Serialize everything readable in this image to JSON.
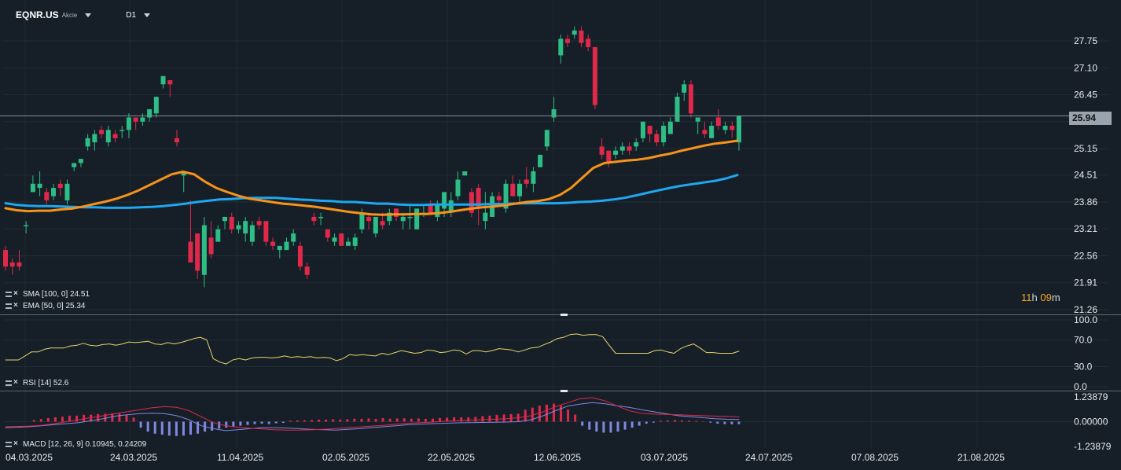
{
  "toolbar": {
    "symbol": "EQNR.US",
    "instrument_type": "Akcie",
    "timeframe": "D1"
  },
  "countdown": {
    "hours": "11",
    "h_unit": "h",
    "minutes": "09",
    "m_unit": "m"
  },
  "last_price": "25.94",
  "indicators": {
    "sma": "SMA [100, 0] 24.51",
    "ema": "EMA [50, 0] 25.34",
    "rsi": "RSI [14] 52.6",
    "macd": "MACD [12, 26, 9] 0.10945, 0.24209"
  },
  "colors": {
    "background": "#161f28",
    "bull": "#2ebd85",
    "bear": "#e0294a",
    "sma": "#1fa7f0",
    "ema": "#f7931a",
    "rsi": "#e5d56b",
    "macd_line": "#8187e0",
    "signal_line": "#e0294a"
  },
  "chart_data": [
    {
      "type": "candlestick",
      "name": "price",
      "y_ticks": [
        "27.75",
        "27.10",
        "26.45",
        "25.80",
        "25.15",
        "24.51",
        "23.86",
        "23.21",
        "22.56",
        "21.91",
        "21.26"
      ],
      "ylim": [
        21.26,
        27.75
      ],
      "x_ticks": [
        "04.03.2025",
        "24.03.2025",
        "11.04.2025",
        "02.05.2025",
        "22.05.2025",
        "12.06.2025",
        "03.07.2025",
        "24.07.2025",
        "07.08.2025",
        "21.08.2025"
      ],
      "ohlc": [
        [
          22.7,
          22.3,
          22.8,
          22.2
        ],
        [
          22.4,
          22.3,
          22.5,
          22.1
        ],
        [
          22.4,
          22.3,
          22.7,
          22.2
        ],
        [
          23.3,
          23.3,
          23.4,
          23.1
        ],
        [
          24.1,
          24.3,
          24.5,
          24.1
        ],
        [
          24.2,
          24.3,
          24.6,
          24.0
        ],
        [
          24.1,
          23.9,
          24.2,
          23.8
        ],
        [
          24.0,
          24.2,
          24.3,
          23.9
        ],
        [
          24.3,
          24.2,
          24.4,
          24.0
        ],
        [
          23.9,
          24.3,
          24.4,
          23.8
        ],
        [
          24.7,
          24.8,
          24.8,
          24.6
        ],
        [
          24.8,
          24.9,
          24.9,
          24.7
        ],
        [
          25.2,
          25.4,
          25.5,
          25.1
        ],
        [
          25.3,
          25.5,
          25.6,
          25.1
        ],
        [
          25.6,
          25.5,
          25.7,
          25.4
        ],
        [
          25.3,
          25.6,
          25.7,
          25.2
        ],
        [
          25.5,
          25.4,
          25.6,
          25.3
        ],
        [
          25.6,
          25.6,
          25.7,
          25.4
        ],
        [
          25.6,
          25.9,
          26.0,
          25.4
        ],
        [
          25.9,
          25.8,
          25.9,
          25.6
        ],
        [
          25.8,
          25.9,
          26.0,
          25.7
        ],
        [
          25.9,
          26.1,
          26.1,
          25.8
        ],
        [
          26.0,
          26.4,
          26.4,
          25.9
        ],
        [
          26.7,
          26.9,
          26.9,
          26.6
        ],
        [
          26.8,
          26.7,
          26.8,
          26.4
        ],
        [
          25.4,
          25.3,
          25.6,
          25.2
        ],
        [
          24.5,
          24.6,
          24.6,
          24.1
        ],
        [
          22.9,
          22.4,
          23.9,
          22.4
        ],
        [
          23.1,
          22.2,
          23.1,
          22.0
        ],
        [
          22.1,
          23.3,
          23.5,
          21.8
        ],
        [
          23.0,
          22.6,
          23.4,
          22.5
        ],
        [
          22.9,
          23.2,
          23.3,
          22.9
        ],
        [
          23.4,
          23.5,
          23.5,
          23.2
        ],
        [
          23.5,
          23.2,
          23.6,
          23.1
        ],
        [
          23.2,
          23.3,
          23.4,
          23.1
        ],
        [
          23.1,
          23.4,
          23.5,
          22.9
        ],
        [
          22.9,
          23.3,
          23.4,
          22.8
        ],
        [
          23.4,
          23.3,
          23.5,
          23.2
        ],
        [
          23.4,
          22.9,
          23.4,
          22.8
        ],
        [
          22.9,
          22.8,
          23.0,
          22.7
        ],
        [
          22.7,
          22.8,
          22.8,
          22.5
        ],
        [
          22.7,
          22.9,
          23.0,
          22.7
        ],
        [
          22.9,
          23.1,
          23.2,
          22.8
        ],
        [
          22.8,
          22.3,
          22.9,
          22.2
        ],
        [
          22.3,
          22.1,
          22.4,
          22.0
        ],
        [
          23.5,
          23.4,
          23.6,
          23.3
        ],
        [
          23.5,
          23.5,
          23.6,
          23.3
        ],
        [
          23.2,
          23.0,
          23.2,
          22.9
        ],
        [
          22.9,
          23.0,
          23.1,
          22.8
        ],
        [
          23.1,
          22.8,
          23.1,
          22.8
        ],
        [
          22.8,
          22.9,
          23.0,
          22.8
        ],
        [
          22.8,
          23.0,
          23.1,
          22.7
        ],
        [
          23.2,
          23.6,
          23.7,
          23.1
        ],
        [
          23.5,
          23.4,
          23.6,
          23.2
        ],
        [
          23.1,
          23.5,
          23.5,
          23.0
        ],
        [
          23.4,
          23.3,
          23.6,
          23.2
        ],
        [
          23.4,
          23.6,
          23.7,
          23.3
        ],
        [
          23.7,
          23.5,
          23.7,
          23.4
        ],
        [
          23.4,
          23.5,
          23.6,
          23.2
        ],
        [
          23.5,
          23.5,
          23.8,
          23.2
        ],
        [
          23.2,
          23.7,
          23.7,
          23.2
        ],
        [
          23.6,
          23.6,
          23.8,
          23.5
        ],
        [
          23.8,
          23.6,
          23.9,
          23.6
        ],
        [
          23.5,
          23.8,
          23.9,
          23.4
        ],
        [
          23.7,
          24.1,
          24.1,
          23.5
        ],
        [
          23.6,
          23.9,
          24.1,
          23.5
        ],
        [
          24.0,
          24.4,
          24.6,
          23.9
        ],
        [
          24.5,
          24.6,
          24.6,
          24.5
        ],
        [
          24.1,
          23.6,
          24.2,
          23.5
        ],
        [
          24.2,
          23.7,
          24.3,
          23.3
        ],
        [
          23.4,
          23.6,
          24.1,
          23.2
        ],
        [
          23.5,
          24.0,
          24.1,
          23.6
        ],
        [
          24.0,
          23.9,
          24.1,
          23.8
        ],
        [
          23.7,
          24.3,
          24.4,
          23.6
        ],
        [
          24.3,
          24.0,
          24.5,
          24.0
        ],
        [
          24.0,
          24.3,
          24.4,
          23.8
        ],
        [
          24.4,
          24.3,
          24.7,
          24.2
        ],
        [
          24.3,
          24.6,
          24.7,
          24.1
        ],
        [
          24.7,
          25.0,
          25.0,
          24.7
        ],
        [
          25.2,
          25.6,
          25.6,
          25.1
        ],
        [
          25.9,
          26.1,
          26.4,
          25.8
        ],
        [
          27.4,
          27.8,
          27.9,
          27.2
        ],
        [
          27.8,
          27.7,
          27.9,
          27.6
        ],
        [
          27.9,
          28.0,
          28.1,
          27.8
        ],
        [
          28.0,
          27.7,
          28.1,
          27.6
        ],
        [
          27.8,
          27.6,
          27.9,
          27.5
        ],
        [
          27.6,
          26.2,
          27.6,
          26.1
        ],
        [
          25.2,
          25.0,
          25.4,
          24.9
        ],
        [
          25.1,
          24.8,
          25.1,
          24.7
        ],
        [
          25.0,
          25.1,
          25.2,
          24.9
        ],
        [
          25.1,
          25.2,
          25.3,
          25.0
        ],
        [
          25.2,
          25.1,
          25.3,
          25.0
        ],
        [
          25.2,
          25.3,
          25.4,
          25.1
        ],
        [
          25.4,
          25.8,
          25.8,
          25.3
        ],
        [
          25.7,
          25.5,
          25.7,
          25.3
        ],
        [
          25.5,
          25.3,
          25.6,
          25.2
        ],
        [
          25.3,
          25.7,
          25.8,
          25.2
        ],
        [
          25.5,
          25.8,
          25.9,
          25.5
        ],
        [
          25.8,
          26.4,
          26.5,
          25.8
        ],
        [
          26.5,
          26.7,
          26.8,
          26.3
        ],
        [
          26.7,
          26.0,
          26.8,
          25.9
        ],
        [
          25.8,
          25.9,
          25.9,
          25.5
        ],
        [
          25.6,
          25.5,
          25.8,
          25.4
        ],
        [
          25.4,
          25.7,
          25.8,
          25.4
        ],
        [
          25.9,
          25.7,
          26.1,
          25.6
        ],
        [
          25.6,
          25.7,
          25.8,
          25.5
        ],
        [
          25.7,
          25.6,
          25.8,
          25.4
        ],
        [
          25.3,
          25.94,
          25.94,
          25.1
        ]
      ]
    },
    {
      "type": "line",
      "name": "SMA [100, 0]",
      "values": [
        23.83,
        23.79,
        23.77,
        23.76,
        23.76,
        23.75,
        23.74,
        23.73,
        23.73,
        23.72,
        23.72,
        23.72,
        23.73,
        23.74,
        23.76,
        23.79,
        23.82,
        23.86,
        23.89,
        23.92,
        23.93,
        23.95,
        23.96,
        23.96,
        23.96,
        23.94,
        23.92,
        23.91,
        23.89,
        23.88,
        23.86,
        23.86,
        23.84,
        23.82,
        23.82,
        23.8,
        23.79,
        23.79,
        23.8,
        23.8,
        23.8,
        23.8,
        23.8,
        23.81,
        23.81,
        23.82,
        23.83,
        23.83,
        23.83,
        23.83,
        23.84,
        23.86,
        23.87,
        23.89,
        23.92,
        23.96,
        24.02,
        24.08,
        24.14,
        24.2,
        24.25,
        24.29,
        24.33,
        24.37,
        24.43,
        24.51
      ]
    },
    {
      "type": "line",
      "name": "EMA [50, 0]",
      "values": [
        23.71,
        23.66,
        23.64,
        23.65,
        23.65,
        23.68,
        23.7,
        23.75,
        23.81,
        23.87,
        23.94,
        24.03,
        24.14,
        24.27,
        24.4,
        24.53,
        24.59,
        24.53,
        24.35,
        24.2,
        24.1,
        24.01,
        23.94,
        23.9,
        23.86,
        23.82,
        23.8,
        23.77,
        23.74,
        23.7,
        23.66,
        23.62,
        23.59,
        23.56,
        23.55,
        23.56,
        23.56,
        23.57,
        23.57,
        23.59,
        23.62,
        23.66,
        23.7,
        23.73,
        23.75,
        23.78,
        23.82,
        23.86,
        23.88,
        23.93,
        24.03,
        24.2,
        24.44,
        24.68,
        24.8,
        24.83,
        24.86,
        24.88,
        24.92,
        24.98,
        25.03,
        25.1,
        25.16,
        25.22,
        25.27,
        25.3,
        25.34
      ]
    },
    {
      "type": "line",
      "name": "RSI [14]",
      "y_ticks": [
        "100.0",
        "70.0",
        "30.0",
        "0.0"
      ],
      "ylim": [
        0,
        100
      ],
      "values": [
        40,
        40,
        40,
        46,
        52,
        52,
        56,
        58,
        58,
        58,
        61,
        62,
        65,
        62,
        61,
        63,
        64,
        62,
        64,
        67,
        66,
        67,
        68,
        64,
        63,
        66,
        64,
        66,
        69,
        72,
        74,
        70,
        42,
        37,
        34,
        40,
        42,
        40,
        43,
        44,
        44,
        43,
        44,
        46,
        44,
        45,
        44,
        45,
        43,
        44,
        43,
        39,
        42,
        48,
        47,
        48,
        47,
        46,
        50,
        48,
        51,
        54,
        52,
        50,
        51,
        55,
        54,
        51,
        52,
        55,
        54,
        49,
        54,
        54,
        52,
        54,
        57,
        56,
        55,
        52,
        55,
        58,
        59,
        63,
        67,
        72,
        74,
        78,
        79,
        77,
        78,
        78,
        75,
        62,
        50,
        50,
        50,
        50,
        50,
        50,
        54,
        55,
        52,
        50,
        57,
        61,
        64,
        58,
        51,
        51,
        50,
        50,
        50,
        53
      ]
    },
    {
      "type": "line",
      "name": "MACD [12, 26, 9]",
      "y_ticks": [
        "1.23879",
        "0.00000",
        "-1.23879"
      ],
      "ylim": [
        -1.23879,
        1.23879
      ],
      "macd": [
        -0.3,
        -0.28,
        -0.25,
        -0.2,
        -0.15,
        -0.1,
        -0.05,
        0.05,
        0.15,
        0.28,
        0.35,
        0.4,
        0.42,
        0.4,
        0.3,
        0.1,
        -0.2,
        -0.35,
        -0.45,
        -0.4,
        -0.35,
        -0.3,
        -0.3,
        -0.32,
        -0.35,
        -0.38,
        -0.4,
        -0.42,
        -0.38,
        -0.35,
        -0.3,
        -0.25,
        -0.2,
        -0.15,
        -0.12,
        -0.1,
        -0.08,
        -0.06,
        -0.05,
        -0.04,
        -0.03,
        -0.02,
        0.0,
        0.1,
        0.3,
        0.55,
        0.78,
        0.88,
        0.95,
        0.9,
        0.8,
        0.72,
        0.6,
        0.5,
        0.4,
        0.3,
        0.25,
        0.2,
        0.15,
        0.12,
        0.11
      ],
      "signal": [
        -0.25,
        -0.24,
        -0.22,
        -0.18,
        -0.1,
        0.0,
        0.1,
        0.2,
        0.3,
        0.4,
        0.5,
        0.6,
        0.7,
        0.75,
        0.72,
        0.55,
        0.25,
        -0.05,
        -0.2,
        -0.28,
        -0.33,
        -0.36,
        -0.4,
        -0.42,
        -0.42,
        -0.4,
        -0.38,
        -0.35,
        -0.3,
        -0.26,
        -0.22,
        -0.18,
        -0.12,
        -0.08,
        -0.05,
        -0.02,
        0.02,
        0.05,
        0.08,
        0.1,
        0.12,
        0.15,
        0.2,
        0.3,
        0.5,
        0.75,
        0.95,
        1.15,
        1.2,
        1.05,
        0.8,
        0.55,
        0.42,
        0.38,
        0.36,
        0.35,
        0.32,
        0.3,
        0.28,
        0.26,
        0.24
      ],
      "histogram": [
        0,
        0,
        0,
        0,
        0.08,
        0.13,
        0.18,
        0.22,
        0.25,
        0.3,
        0.3,
        0.34,
        0.35,
        0.38,
        0.4,
        0.42,
        0.4,
        0.35,
        0.2,
        -0.3,
        -0.5,
        -0.6,
        -0.65,
        -0.7,
        -0.72,
        -0.7,
        -0.65,
        -0.6,
        -0.5,
        -0.45,
        -0.35,
        -0.3,
        -0.25,
        -0.2,
        -0.16,
        -0.12,
        -0.1,
        -0.12,
        -0.08,
        -0.06,
        0.05,
        0.06,
        0.07,
        0.08,
        0.1,
        0.1,
        0.12,
        0.1,
        0.12,
        0.15,
        0.14,
        0.16,
        0.14,
        0.18,
        0.15,
        0.16,
        0.17,
        0.15,
        0.16,
        0.14,
        0.15,
        0.18,
        0.2,
        0.22,
        0.22,
        0.22,
        0.24,
        0.28,
        0.3,
        0.34,
        0.36,
        0.38,
        0.4,
        0.6,
        0.7,
        0.8,
        0.85,
        0.9,
        0.8,
        0.6,
        0.35,
        -0.2,
        -0.4,
        -0.5,
        -0.55,
        -0.55,
        -0.5,
        -0.4,
        -0.3,
        -0.2,
        -0.1,
        -0.05,
        0.04,
        0.06,
        0.08,
        0.06,
        0.05,
        0.04,
        0.02,
        -0.05,
        -0.1,
        -0.12,
        -0.13,
        -0.12
      ]
    }
  ]
}
